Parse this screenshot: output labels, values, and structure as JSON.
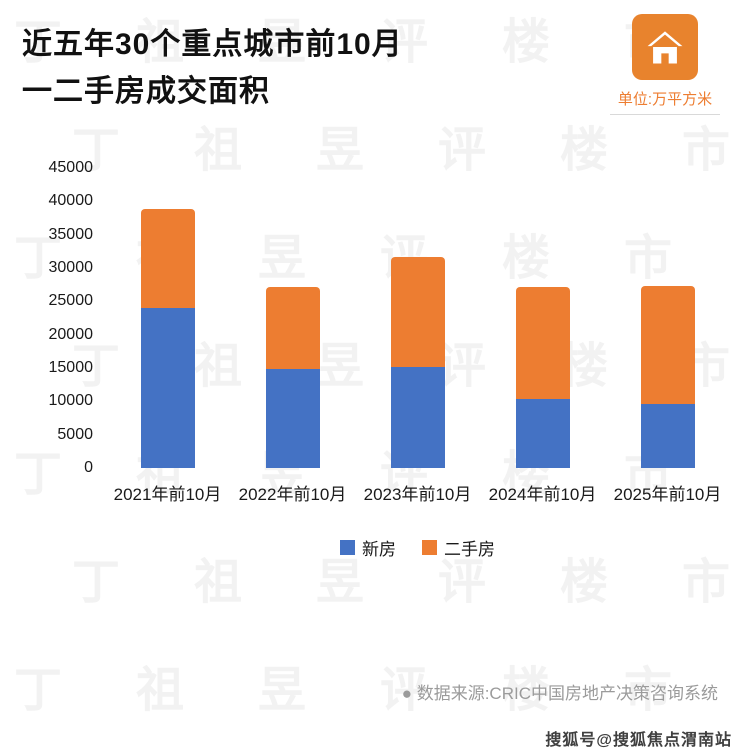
{
  "page": {
    "title_line1": "近五年30个重点城市前10月",
    "title_line2": "一二手房成交面积",
    "unit_label": "单位:万平方米",
    "source": "●  数据来源:CRIC中国房地产决策咨询系统",
    "watermark_text": "丁祖昱评楼市",
    "sohu_watermark": "搜狐号@搜狐焦点渭南站"
  },
  "colors": {
    "new_home_blue": "#4472C4",
    "secondhand_orange": "#ED7D31",
    "icon_orange": "#E8832D",
    "source_gray": "#9b9b9b"
  },
  "chart_data": {
    "type": "bar",
    "stacked": true,
    "title": "近五年30个重点城市前10月一二手房成交面积",
    "unit": "万平方米",
    "categories": [
      "2021年前10月",
      "2022年前10月",
      "2023年前10月",
      "2024年前10月",
      "2025年前10月"
    ],
    "series": [
      {
        "name": "新房",
        "color": "#4472C4",
        "values": [
          24000,
          14800,
          15100,
          10400,
          9600
        ]
      },
      {
        "name": "二手房",
        "color": "#ED7D31",
        "values": [
          14800,
          12300,
          16500,
          16700,
          17700
        ]
      }
    ],
    "totals": [
      38800,
      27100,
      31600,
      27100,
      27300
    ],
    "ylim": [
      0,
      45000
    ],
    "yticks": [
      0,
      5000,
      10000,
      15000,
      20000,
      25000,
      30000,
      35000,
      40000,
      45000
    ],
    "grid": false,
    "legend_position": "bottom"
  }
}
